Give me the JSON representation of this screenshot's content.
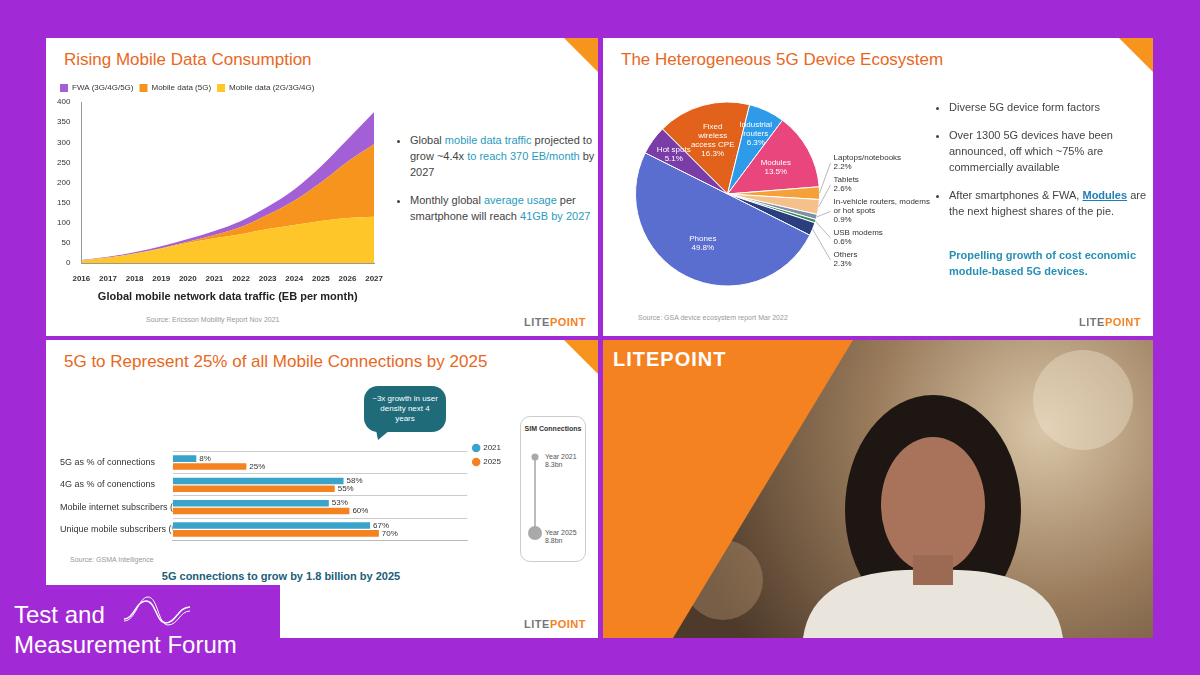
{
  "event": {
    "lines": [
      "Test and",
      "Measurement Forum"
    ]
  },
  "video_panel": {
    "logo": "LITEPOINT"
  },
  "chart_data": [
    {
      "type": "area",
      "title": "Rising Mobile Data Consumption",
      "x_label": "Global mobile network data traffic (EB per month)",
      "categories": [
        "2016",
        "2017",
        "2018",
        "2019",
        "2020",
        "2021",
        "2022",
        "2023",
        "2024",
        "2025",
        "2026",
        "2027"
      ],
      "series": [
        {
          "name": "Mobile data (2G/3G/4G)",
          "color": "#ffc629",
          "values": [
            7,
            14,
            24,
            36,
            50,
            62,
            72,
            85,
            95,
            105,
            112,
            115
          ]
        },
        {
          "name": "Mobile data (5G)",
          "color": "#f7941d",
          "values": [
            0,
            0,
            0,
            1,
            3,
            8,
            18,
            35,
            60,
            95,
            140,
            180
          ]
        },
        {
          "name": "FWA (3G/4G/5G)",
          "color": "#a35fd6",
          "values": [
            1,
            2,
            3,
            5,
            7,
            10,
            15,
            20,
            28,
            40,
            55,
            80
          ]
        }
      ],
      "stacked": true,
      "ylim": [
        0,
        400
      ],
      "yticks": [
        0,
        50,
        100,
        150,
        200,
        250,
        300,
        350,
        400
      ],
      "grid": false,
      "legend": "top left"
    },
    {
      "type": "pie",
      "title": "The Heterogeneous 5G Device Ecosystem",
      "categories": [
        "Fixed wireless access CPE",
        "Industrial routers",
        "Modules",
        "Laptops/notebooks",
        "Tablets",
        "In-vehicle routers, modems or hot spots",
        "USB modems",
        "Others",
        "Phones",
        "Hot spots"
      ],
      "values": [
        16.3,
        6.3,
        13.5,
        2.2,
        2.6,
        0.9,
        0.6,
        2.3,
        49.8,
        5.1
      ],
      "value_labels": [
        "16.3%",
        "6.3%",
        "13.5%",
        "2.2%",
        "2.6%",
        "0.9%",
        "0.6%",
        "2.3%",
        "49.8%",
        "5.1%"
      ],
      "colors": [
        "#e2621b",
        "#2e9bea",
        "#e8467c",
        "#f4a13a",
        "#f6c08a",
        "#7f8fa6",
        "#3d8b5a",
        "#2b3f7e",
        "#5a6ecf",
        "#7a3da8"
      ],
      "data_labels": true
    },
    {
      "type": "bar",
      "title": "5G to Represent 25% of all Mobile Connections by 2025",
      "orientation": "horizontal",
      "categories": [
        "5G as % of connections",
        "4G as % of conenctions",
        "Mobile internet subscribers (% of population)",
        "Unique mobile subscribers (% of population)"
      ],
      "series": [
        {
          "name": "2021",
          "color": "#3aa3c9",
          "values": [
            8,
            58,
            53,
            67
          ],
          "value_labels": [
            "8%",
            "58%",
            "53%",
            "67%"
          ]
        },
        {
          "name": "2025",
          "color": "#f58220",
          "values": [
            25,
            55,
            60,
            70
          ],
          "value_labels": [
            "25%",
            "55%",
            "60%",
            "70%"
          ]
        }
      ],
      "xlim": [
        0,
        100
      ],
      "tick_labels": "y",
      "data_labels": true,
      "grid": true,
      "legend": "top right",
      "annotations": [
        "~3x growth in user density next 4 years"
      ]
    }
  ],
  "slides": [
    {
      "bullets": [
        [
          {
            "text": "Global "
          },
          {
            "text": "mobile data traffic",
            "style": "em"
          },
          {
            "text": " projected to grow ~4.4x "
          },
          {
            "text": "to reach 370 EB/month",
            "style": "em"
          },
          {
            "text": " by 2027"
          }
        ],
        [
          {
            "text": "Monthly global "
          },
          {
            "text": "average usage",
            "style": "em"
          },
          {
            "text": " per smartphone will reach "
          },
          {
            "text": "41GB by 2027",
            "style": "em"
          }
        ]
      ],
      "source": "Source: Ericsson Mobility Report Nov 2021",
      "logo": "LITEPOINT"
    },
    {
      "bullets": [
        [
          {
            "text": "Diverse 5G device form factors"
          }
        ],
        [
          {
            "text": "Over 1300 5G devices have been announced, off which ~75% are commercially available"
          }
        ],
        [
          {
            "text": "After smartphones & FWA, "
          },
          {
            "text": "Modules",
            "style": "link"
          },
          {
            "text": " are the next highest shares of the pie."
          }
        ]
      ],
      "note": [
        {
          "text": "Propelling growth of cost economic module-based 5G devices.",
          "style": "strong"
        }
      ],
      "source": "Source: GSA device ecosystem report Mar 2022",
      "logo": "LITEPOINT"
    },
    {
      "source": "Source: GSMA Intelligence",
      "footer": "5G connections to grow by 1.8 billion by 2025",
      "sim": {
        "title": "SIM Connections",
        "points": [
          {
            "label": "Year 2021",
            "value": "8.3bn"
          },
          {
            "label": "Year 2025",
            "value": "8.8bn"
          }
        ]
      },
      "logo": "LITEPOINT"
    }
  ]
}
